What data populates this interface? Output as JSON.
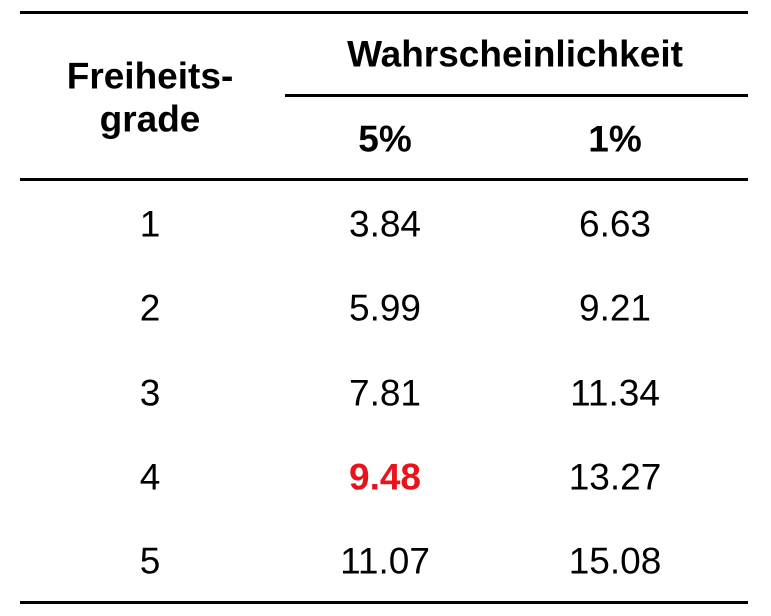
{
  "table": {
    "header": {
      "col0": "Freiheits-\ngrade",
      "group": "Wahrscheinlichkeit",
      "sub": [
        "5%",
        "1%"
      ]
    },
    "rows": [
      [
        "1",
        "3.84",
        "6.63"
      ],
      [
        "2",
        "5.99",
        "9.21"
      ],
      [
        "3",
        "7.81",
        "11.34"
      ],
      [
        "4",
        "9.48",
        "13.27"
      ],
      [
        "5",
        "11.07",
        "15.08"
      ]
    ]
  }
}
